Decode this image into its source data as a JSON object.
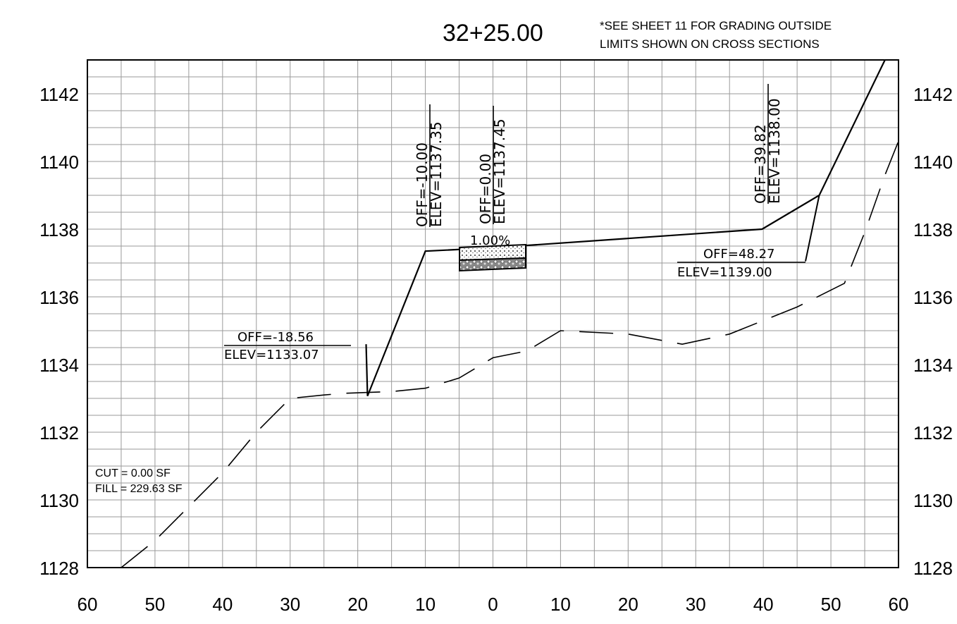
{
  "station_title": "32+25.00",
  "note_line_1": "*SEE SHEET 11 FOR GRADING OUTSIDE",
  "note_line_2": "LIMITS SHOWN ON CROSS SECTIONS",
  "quantities": {
    "cut": "CUT = 0.00 SF",
    "fill": "FILL = 229.63 SF"
  },
  "slope_label": "1.00%",
  "callouts": [
    {
      "id": "left-catch",
      "off": "OFF=-18.56",
      "elev": "ELEV=1133.07"
    },
    {
      "id": "left-shoulder",
      "off": "OFF=-10.00",
      "elev": "ELEV=1137.35"
    },
    {
      "id": "centerline",
      "off": "OFF=0.00",
      "elev": "ELEV=1137.45"
    },
    {
      "id": "right-break",
      "off": "OFF=39.82",
      "elev": "ELEV=1138.00"
    },
    {
      "id": "right-catch",
      "off": "OFF=48.27",
      "elev": "ELEV=1139.00"
    }
  ],
  "chart_data": {
    "type": "line",
    "x_ticks": [
      "60",
      "50",
      "40",
      "30",
      "20",
      "10",
      "0",
      "10",
      "20",
      "30",
      "40",
      "50",
      "60"
    ],
    "y_ticks_left": [
      "1128",
      "1130",
      "1132",
      "1134",
      "1136",
      "1138",
      "1140",
      "1142"
    ],
    "y_ticks_right": [
      "1128",
      "1130",
      "1132",
      "1134",
      "1136",
      "1138",
      "1140",
      "1142"
    ],
    "xlim": [
      -60,
      60
    ],
    "ylim": [
      1128,
      1143
    ],
    "grid": true,
    "proposed_section": {
      "x": [
        -23.5,
        -18.56,
        -10.0,
        0.0,
        39.82,
        48.27,
        58.0
      ],
      "y": [
        1133.07,
        1133.07,
        1137.35,
        1137.45,
        1138.0,
        1139.0,
        1143.0
      ]
    },
    "existing_ground": {
      "x": [
        -55,
        -50,
        -45,
        -40,
        -35,
        -30,
        -25,
        -22,
        -15,
        -10,
        -5,
        0,
        5,
        10,
        20,
        28,
        35,
        45,
        52,
        55,
        58,
        60
      ],
      "y": [
        1128.0,
        1128.8,
        1129.8,
        1130.8,
        1132.0,
        1133.0,
        1133.1,
        1133.15,
        1133.2,
        1133.3,
        1133.6,
        1134.2,
        1134.4,
        1135.0,
        1134.9,
        1134.6,
        1134.9,
        1135.7,
        1136.4,
        1137.9,
        1139.6,
        1140.6
      ]
    }
  }
}
